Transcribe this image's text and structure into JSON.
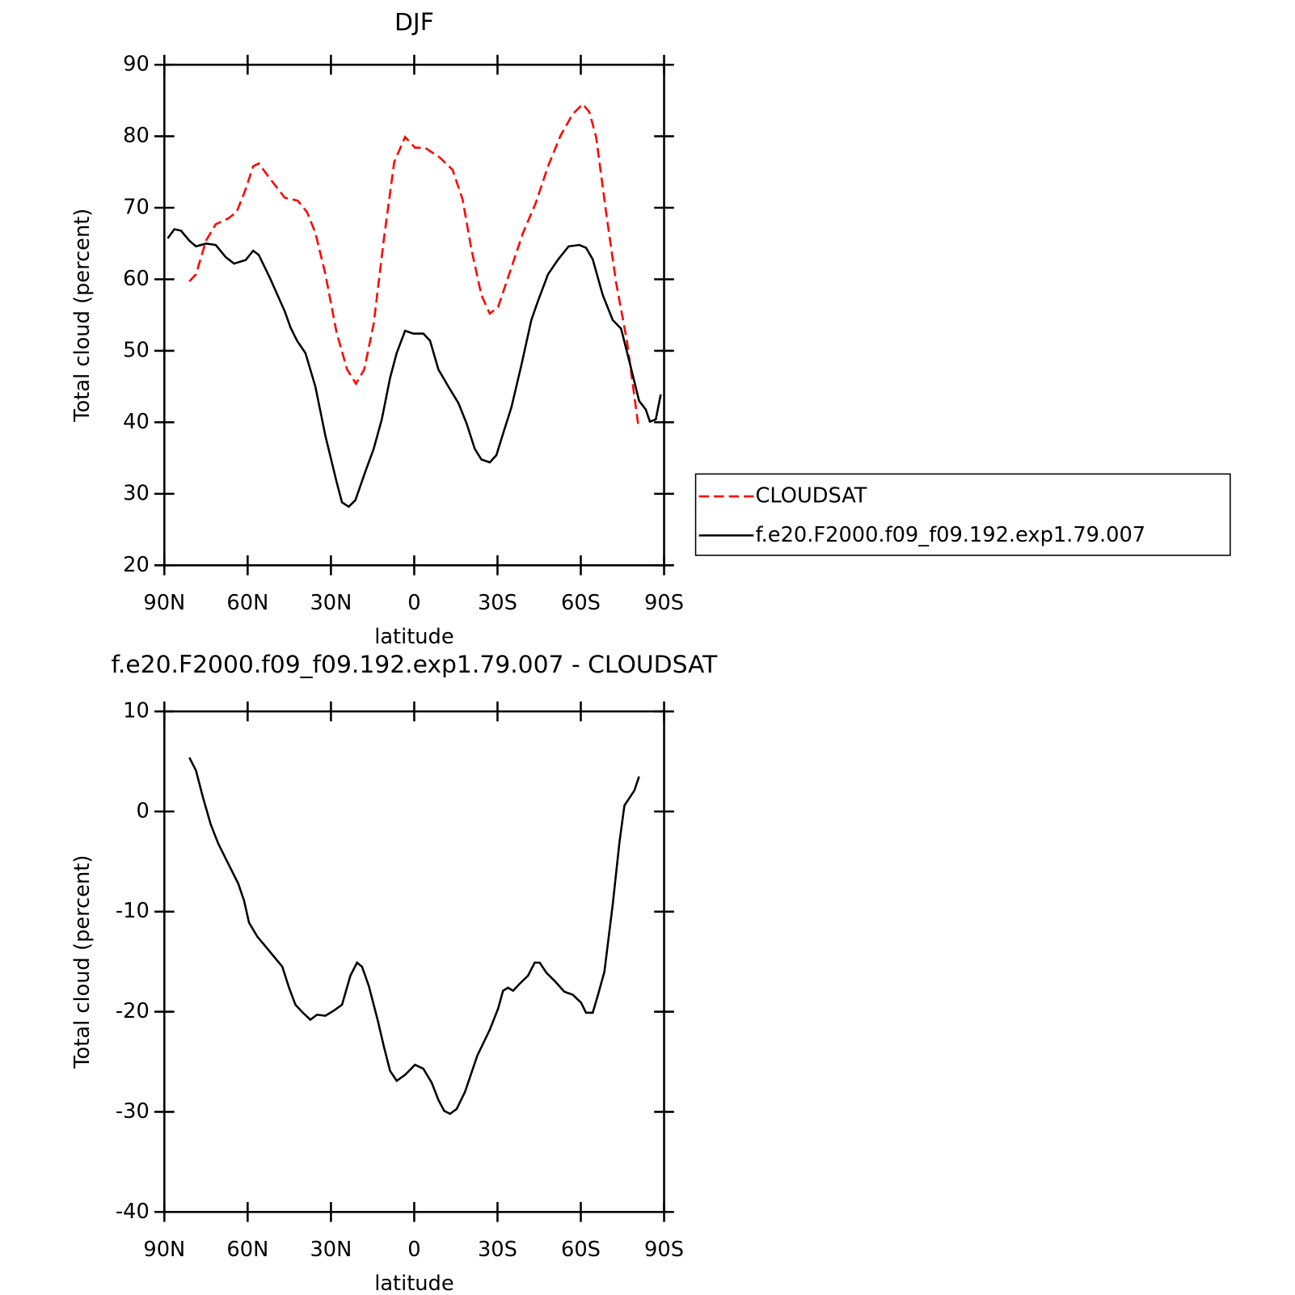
{
  "chart_data": [
    {
      "type": "line",
      "title": "DJF",
      "x_label": "latitude",
      "y_label": "Total cloud (percent)",
      "xlim": [
        90,
        -90
      ],
      "xticks": [
        {
          "value": 90,
          "label": "90N"
        },
        {
          "value": 60,
          "label": "60N"
        },
        {
          "value": 30,
          "label": "30N"
        },
        0,
        {
          "value": -30,
          "label": "30S"
        },
        {
          "value": -60,
          "label": "60S"
        },
        {
          "value": -90,
          "label": "90S"
        }
      ],
      "ylim": [
        20,
        90
      ],
      "yticks": [
        20,
        30,
        40,
        50,
        60,
        70,
        80,
        90
      ],
      "legend": "right",
      "series": [
        {
          "name": "CLOUDSAT",
          "color": "#ff0000",
          "dash": "dashed",
          "x": [
            81,
            78.6,
            75,
            71.5,
            67,
            64,
            61,
            58,
            56,
            52,
            46.6,
            42,
            38.6,
            35.6,
            32,
            28,
            24.2,
            21,
            18,
            14.6,
            11,
            7.2,
            3.3,
            -0.3,
            -3.9,
            -9.3,
            -13.8,
            -17.4,
            -20.6,
            -24.2,
            -27.2,
            -30.2,
            -34.7,
            -39.2,
            -43.7,
            -48.2,
            -52.7,
            -57.1,
            -60.7,
            -63.1,
            -65.5,
            -69.1,
            -72.7,
            -76.6,
            -80.7
          ],
          "values": [
            59.7,
            60.7,
            65.4,
            67.7,
            68.5,
            69.4,
            72.3,
            75.8,
            76.2,
            74.1,
            71.4,
            71,
            69.4,
            66.5,
            60.7,
            52.6,
            47.4,
            45.4,
            47.4,
            53.8,
            65.4,
            76.4,
            79.9,
            78.4,
            78.4,
            77,
            75.3,
            71.2,
            64.2,
            57.8,
            55.2,
            56.1,
            61.3,
            66.5,
            70.6,
            75.8,
            80.1,
            83.1,
            84.5,
            83.4,
            79.9,
            69.4,
            59.6,
            51.4,
            39.6
          ]
        },
        {
          "name": "f.e20.F2000.f09_f09.192.exp1.79.007",
          "color": "#000000",
          "dash": "solid",
          "x": [
            88.8,
            86.4,
            84,
            81,
            78.6,
            75,
            71.5,
            67.9,
            64.9,
            60.7,
            58,
            56,
            52,
            46.6,
            44.5,
            42.2,
            39.2,
            35.6,
            32,
            28,
            26,
            23.6,
            21.2,
            17.6,
            14.6,
            11.7,
            8.7,
            6.3,
            3.3,
            0.3,
            -3.3,
            -5.7,
            -8.7,
            -12.3,
            -15.9,
            -18.9,
            -21.8,
            -24.2,
            -27.2,
            -29.6,
            -32,
            -35,
            -38.6,
            -42.2,
            -44.6,
            -48.2,
            -51.7,
            -55.6,
            -59.5,
            -61.9,
            -64.3,
            -67.9,
            -71.5,
            -74.5,
            -77.5,
            -81,
            -83.4,
            -84.9,
            -87,
            -88.8
          ],
          "values": [
            65.7,
            67,
            66.8,
            65.4,
            64.6,
            65,
            64.8,
            63.1,
            62.2,
            62.7,
            64,
            63.4,
            60.2,
            55.5,
            53.2,
            51.4,
            49.7,
            45,
            38.1,
            31.7,
            28.8,
            28.2,
            29.1,
            33.1,
            36.3,
            40.4,
            46.2,
            49.7,
            52.8,
            52.4,
            52.4,
            51.4,
            47.4,
            45,
            42.7,
            39.8,
            36.3,
            34.8,
            34.4,
            35.4,
            38.4,
            42.1,
            48,
            54.3,
            57,
            60.7,
            62.7,
            64.6,
            64.8,
            64.4,
            62.8,
            57.8,
            54.3,
            53.1,
            48.5,
            43,
            41.8,
            40.1,
            40.4,
            43.9
          ]
        }
      ]
    },
    {
      "type": "line",
      "title": "f.e20.F2000.f09_f09.192.exp1.79.007 - CLOUDSAT",
      "x_label": "latitude",
      "y_label": "Total cloud (percent)",
      "xlim": [
        90,
        -90
      ],
      "xticks": [
        {
          "value": 90,
          "label": "90N"
        },
        {
          "value": 60,
          "label": "60N"
        },
        {
          "value": 30,
          "label": "30N"
        },
        0,
        {
          "value": -30,
          "label": "30S"
        },
        {
          "value": -60,
          "label": "60S"
        },
        {
          "value": -90,
          "label": "90S"
        }
      ],
      "ylim": [
        -40,
        10
      ],
      "yticks": [
        -40,
        -30,
        -20,
        -10,
        0,
        10
      ],
      "series": [
        {
          "color": "#000000",
          "dash": "solid",
          "x": [
            81,
            78.6,
            76.2,
            73.3,
            70.6,
            67,
            63.4,
            61.3,
            59.5,
            56.5,
            53.5,
            50.5,
            47.5,
            45.1,
            42.8,
            40.1,
            37.4,
            35,
            32,
            29,
            26,
            23,
            20.6,
            18.8,
            16.4,
            13.1,
            11,
            8.7,
            6.3,
            3.3,
            -0.3,
            -3.3,
            -6.3,
            -8.7,
            -10.8,
            -12.9,
            -15.3,
            -18.3,
            -22.7,
            -27.2,
            -30.2,
            -32,
            -33.8,
            -35.6,
            -38,
            -41,
            -43.4,
            -45.2,
            -47.6,
            -50.5,
            -54.1,
            -57.1,
            -60.1,
            -61.9,
            -64.3,
            -66.1,
            -68.5,
            -71.5,
            -73.9,
            -75.7,
            -78.1,
            -79.3,
            -81
          ],
          "values": [
            5.4,
            4.1,
            1.5,
            -1.3,
            -3.2,
            -5.2,
            -7.2,
            -8.9,
            -11.1,
            -12.5,
            -13.5,
            -14.5,
            -15.5,
            -17.6,
            -19.3,
            -20.1,
            -20.8,
            -20.3,
            -20.4,
            -19.9,
            -19.3,
            -16.4,
            -15.1,
            -15.5,
            -17.4,
            -20.9,
            -23.4,
            -25.9,
            -26.9,
            -26.3,
            -25.3,
            -25.7,
            -27.1,
            -28.8,
            -29.9,
            -30.2,
            -29.7,
            -28,
            -24.4,
            -21.8,
            -19.7,
            -17.9,
            -17.6,
            -17.9,
            -17.2,
            -16.4,
            -15.1,
            -15.1,
            -16.1,
            -16.9,
            -18,
            -18.3,
            -19.1,
            -20.1,
            -20.1,
            -18.4,
            -16,
            -9.3,
            -3.1,
            0.6,
            1.6,
            2.1,
            3.5
          ]
        }
      ]
    }
  ]
}
